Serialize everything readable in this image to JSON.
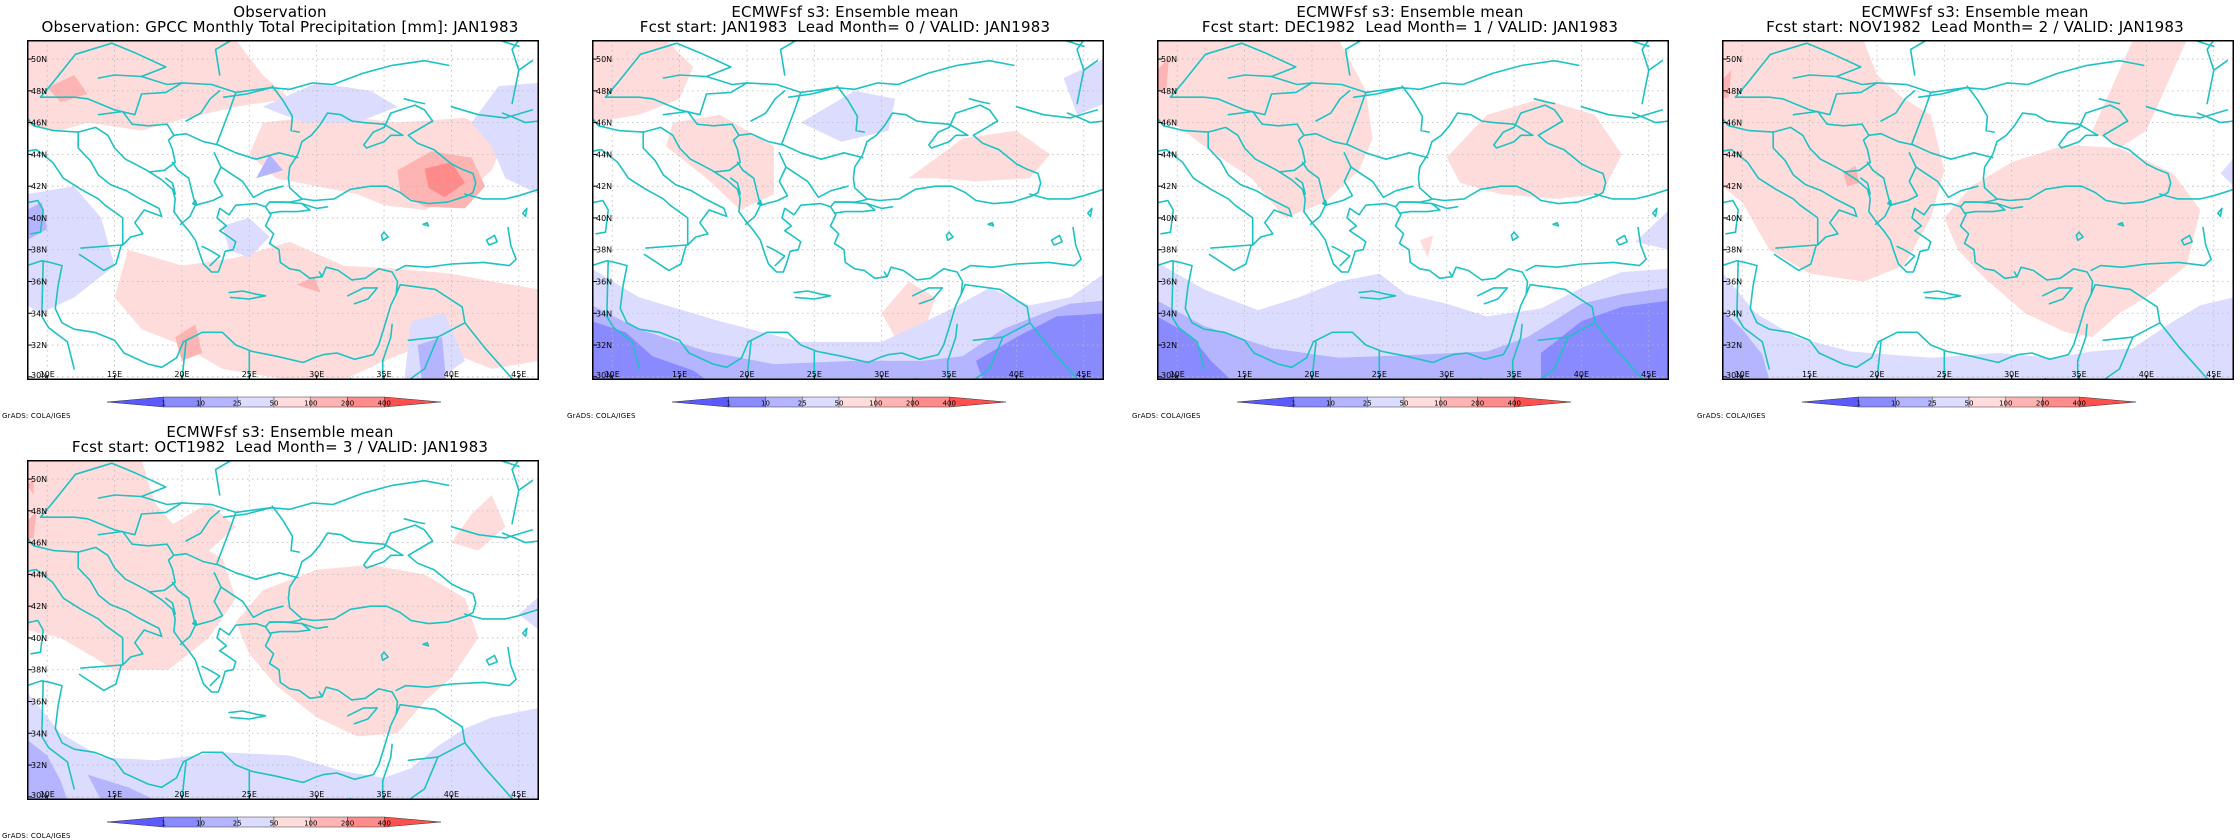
{
  "colors": {
    "blue_light": "#dcdcff",
    "blue_mid": "#b4b4ff",
    "blue_dark": "#8a8aff",
    "blue_darkest": "#5a5aff",
    "red_light": "#ffdcdc",
    "red_mid": "#ffb4b4",
    "red_dark": "#ff8a8a",
    "red_darkest": "#ff5050",
    "coast": "#1fc2c2",
    "grid": "#b8b8b8",
    "frame": "#000000"
  },
  "map": {
    "lat_labels": [
      "50N",
      "48N",
      "46N",
      "44N",
      "42N",
      "40N",
      "38N",
      "36N",
      "34N",
      "32N",
      "30N"
    ],
    "lon_labels": [
      "10E",
      "15E",
      "20E",
      "25E",
      "30E",
      "35E",
      "40E",
      "45E"
    ],
    "colorbar_labels": [
      "1",
      "10",
      "25",
      "50",
      "100",
      "200",
      "400"
    ]
  },
  "panels": [
    {
      "title1": "Observation",
      "title2": "Observation: GPCC Monthly Total Precipitation [mm]: JAN1983",
      "credit": "GrADS: COLA/IGES",
      "pattern": "obs"
    },
    {
      "title1": "ECMWFsf s3: Ensemble mean",
      "title2": "Fcst start: JAN1983  Lead Month= 0 / VALID: JAN1983",
      "credit": "GrADS: COLA/IGES",
      "pattern": "lead0"
    },
    {
      "title1": "ECMWFsf s3: Ensemble mean",
      "title2": "Fcst start: DEC1982  Lead Month= 1 / VALID: JAN1983",
      "credit": "GrADS: COLA/IGES",
      "pattern": "lead1"
    },
    {
      "title1": "ECMWFsf s3: Ensemble mean",
      "title2": "Fcst start: NOV1982  Lead Month= 2 / VALID: JAN1983",
      "credit": "GrADS: COLA/IGES",
      "pattern": "lead2"
    },
    {
      "title1": "ECMWFsf s3: Ensemble mean",
      "title2": "Fcst start: OCT1982  Lead Month= 3 / VALID: JAN1983",
      "credit": "GrADS: COLA/IGES",
      "pattern": "lead3"
    }
  ]
}
